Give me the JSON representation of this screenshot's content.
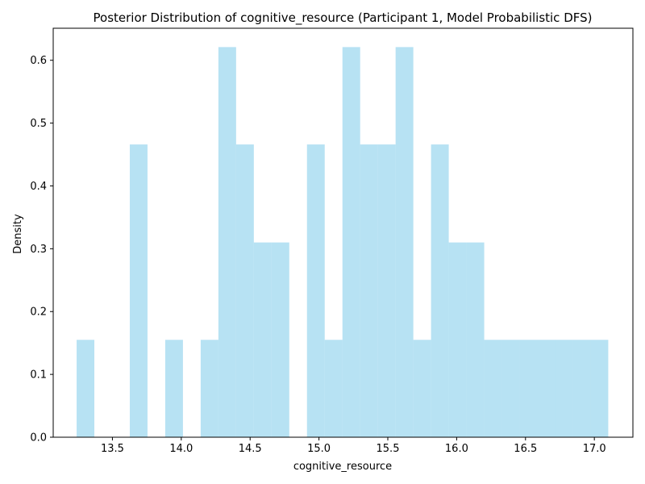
{
  "chart_data": {
    "type": "bar",
    "title": "Posterior Distribution of cognitive_resource (Participant 1, Model Probabilistic DFS)",
    "xlabel": "cognitive_resource",
    "ylabel": "Density",
    "xlim": [
      13.07,
      17.28
    ],
    "ylim": [
      0,
      0.651
    ],
    "xticks": [
      13.5,
      14.0,
      14.5,
      15.0,
      15.5,
      16.0,
      16.5,
      17.0
    ],
    "yticks": [
      0.0,
      0.1,
      0.2,
      0.3,
      0.4,
      0.5,
      0.6
    ],
    "xtick_labels": [
      "13.5",
      "14.0",
      "14.5",
      "15.0",
      "15.5",
      "16.0",
      "16.5",
      "17.0"
    ],
    "ytick_labels": [
      "0.0",
      "0.1",
      "0.2",
      "0.3",
      "0.4",
      "0.5",
      "0.6"
    ],
    "bar_color": "#87CEEB",
    "bar_opacity": 0.6,
    "bins": {
      "start": 13.24,
      "width": 0.1287,
      "values": [
        0.155,
        0,
        0,
        0.466,
        0,
        0.155,
        0,
        0.155,
        0.621,
        0.466,
        0.31,
        0.31,
        0,
        0.466,
        0.155,
        0.621,
        0.466,
        0.466,
        0.621,
        0.155,
        0.466,
        0.31,
        0.31,
        0.155,
        0.155,
        0.155,
        0.155,
        0.155,
        0.155,
        0.155
      ]
    },
    "grid": false,
    "legend": "none"
  }
}
